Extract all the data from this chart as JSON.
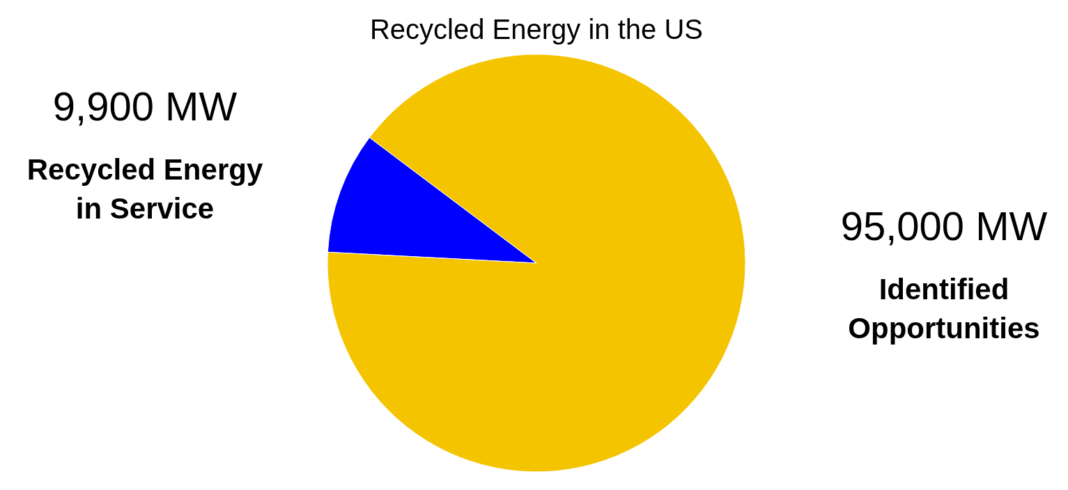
{
  "chart_data": {
    "type": "pie",
    "title": "Recycled Energy in the US",
    "categories": [
      "Recycled Energy in Service",
      "Identified Opportunities"
    ],
    "values": [
      9900,
      95000
    ],
    "value_labels": [
      "9,900 MW",
      "95,000 MW"
    ],
    "colors": [
      "#0000ff",
      "#f5c400"
    ]
  }
}
